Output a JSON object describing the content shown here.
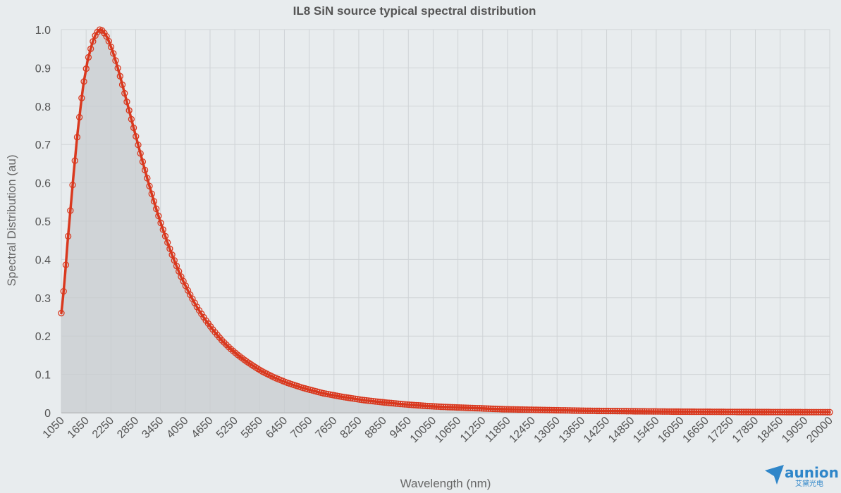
{
  "chart_data": {
    "type": "area",
    "title": "IL8 SiN source typical spectral distribution",
    "xlabel": "Wavelength  (nm)",
    "ylabel": "Spectral Distribution (au)",
    "xlim": [
      1050,
      20000
    ],
    "ylim": [
      0,
      1.0
    ],
    "x_tick_labels": [
      "1050",
      "1650",
      "2250",
      "2850",
      "3450",
      "4050",
      "4650",
      "5250",
      "5850",
      "6450",
      "7050",
      "7650",
      "8250",
      "8850",
      "9450",
      "10050",
      "10650",
      "11250",
      "11850",
      "12450",
      "13050",
      "13650",
      "14250",
      "14850",
      "15450",
      "16050",
      "16650",
      "17250",
      "17850",
      "18450",
      "19050",
      "20000"
    ],
    "y_tick_labels": [
      "0",
      "0.1",
      "0.2",
      "0.3",
      "0.4",
      "0.5",
      "0.6",
      "0.7",
      "0.8",
      "0.9",
      "1.0"
    ],
    "grid": true,
    "legend": "none",
    "colors": {
      "line": "#d9381e",
      "fill": "#c8cccf",
      "grid": "#cfd3d6",
      "axis": "#888888"
    },
    "series": [
      {
        "x": [
          1050,
          1100,
          1150,
          1200,
          1250,
          1300,
          1350,
          1400,
          1450,
          1500,
          1550,
          1600,
          1650,
          1700,
          1750,
          1800,
          1850,
          1900,
          1950,
          2000,
          2050,
          2100,
          2150,
          2200,
          2250,
          2300,
          2350,
          2400,
          2450,
          2500,
          2600,
          2700,
          2800,
          2900,
          3000,
          3100,
          3200,
          3300,
          3400,
          3500,
          3600,
          3700,
          3800,
          3900,
          4000,
          4200,
          4400,
          4600,
          4800,
          5000,
          5200,
          5400,
          5600,
          5800,
          6000,
          6300,
          6600,
          7000,
          7500,
          8000,
          8500,
          9000,
          9500,
          10000,
          10500,
          11000,
          11500,
          12000,
          12500,
          13000,
          13500,
          14000,
          14500,
          15000,
          15500,
          16000,
          16500,
          17000,
          17500,
          18000,
          18500,
          19000,
          19500,
          20000
        ],
        "y": [
          0.26,
          0.31,
          0.37,
          0.44,
          0.5,
          0.56,
          0.62,
          0.675,
          0.73,
          0.775,
          0.82,
          0.86,
          0.89,
          0.92,
          0.94,
          0.96,
          0.975,
          0.988,
          0.995,
          1.0,
          0.998,
          0.992,
          0.985,
          0.975,
          0.962,
          0.948,
          0.932,
          0.915,
          0.897,
          0.878,
          0.838,
          0.798,
          0.757,
          0.717,
          0.677,
          0.638,
          0.6,
          0.564,
          0.529,
          0.496,
          0.465,
          0.435,
          0.407,
          0.381,
          0.356,
          0.313,
          0.275,
          0.243,
          0.215,
          0.19,
          0.169,
          0.151,
          0.135,
          0.121,
          0.108,
          0.092,
          0.079,
          0.065,
          0.051,
          0.041,
          0.033,
          0.027,
          0.022,
          0.018,
          0.015,
          0.013,
          0.011,
          0.009,
          0.008,
          0.007,
          0.006,
          0.005,
          0.0045,
          0.004,
          0.0035,
          0.003,
          0.0027,
          0.0024,
          0.0021,
          0.0019,
          0.0017,
          0.0015,
          0.0014,
          0.0013
        ]
      }
    ]
  },
  "logo": {
    "text": "aunion",
    "subtext": "艾黛光电"
  }
}
